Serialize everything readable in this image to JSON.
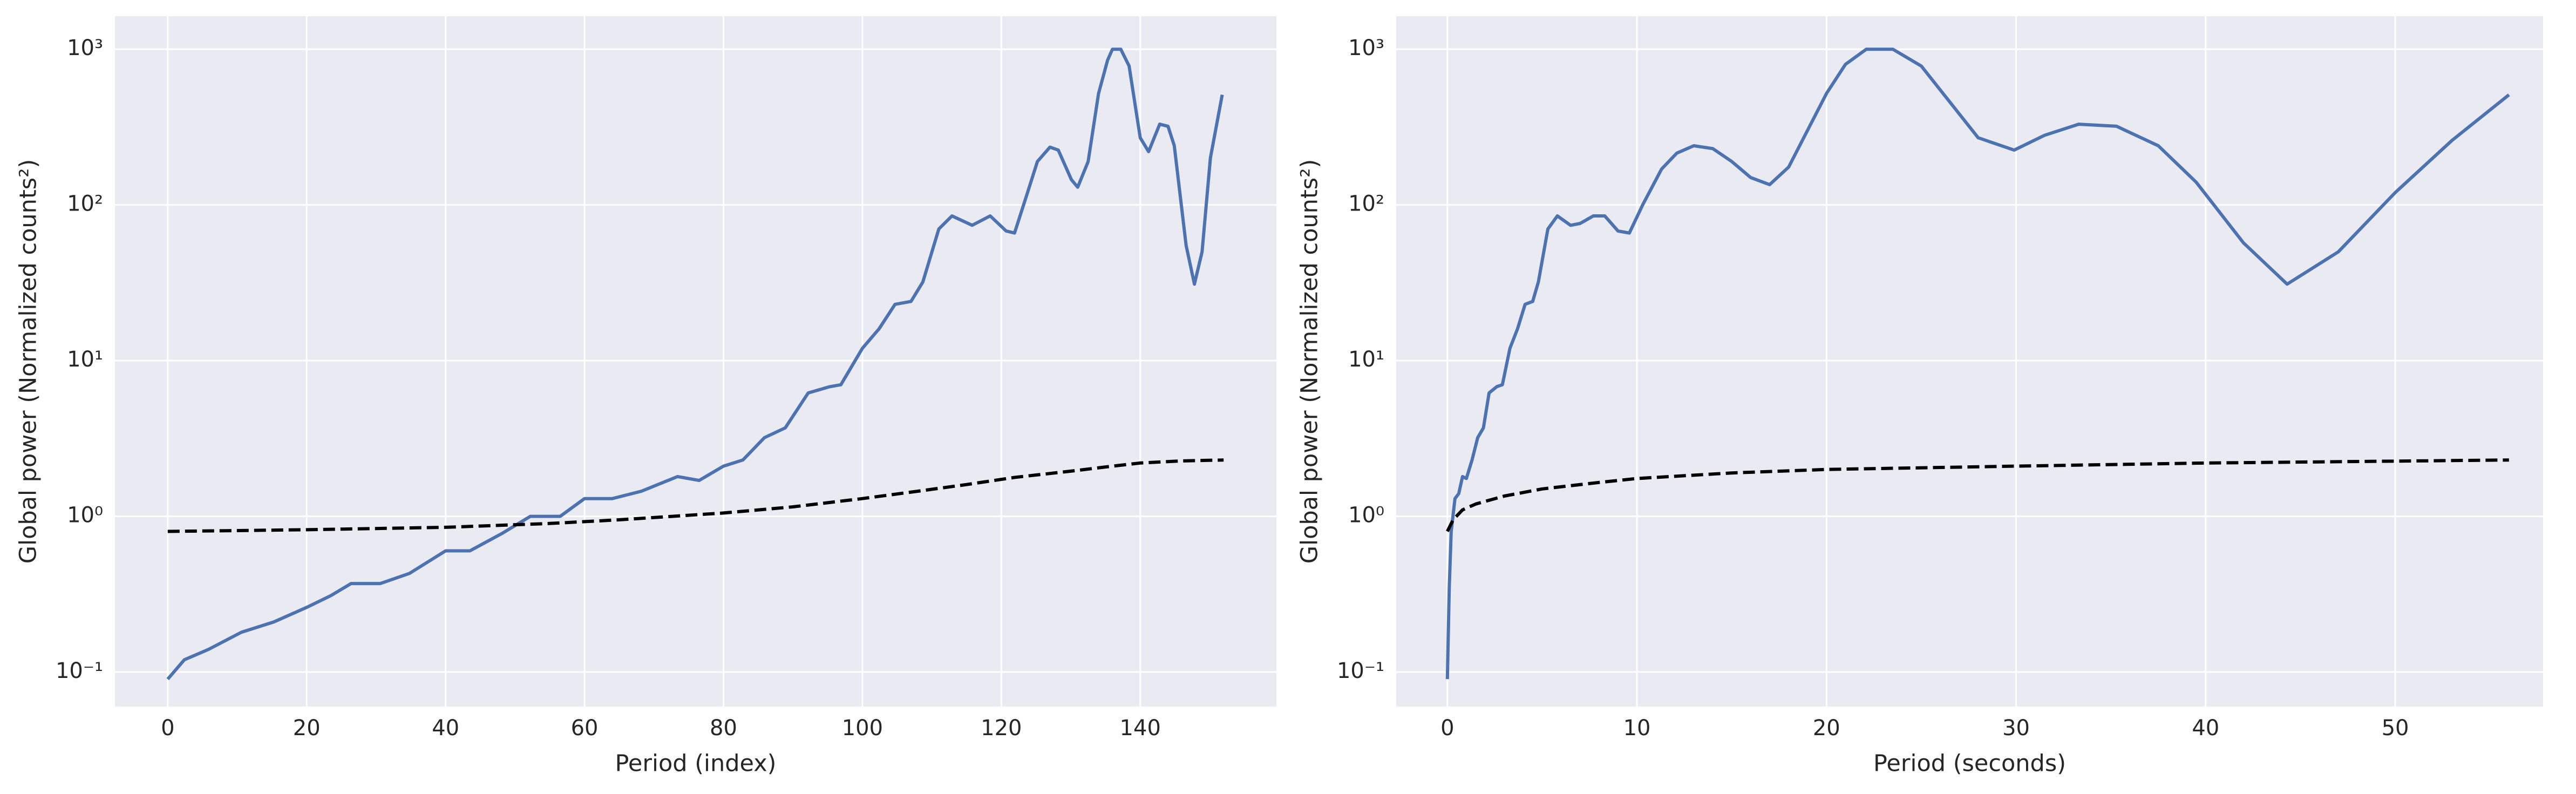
{
  "chart_data": [
    {
      "type": "line",
      "xlabel": "Period (index)",
      "ylabel": "Global power (Normalized counts²)",
      "log_y": true,
      "grid": true,
      "xlim": [
        -7.6,
        159.6
      ],
      "ylim": [
        0.06,
        1630
      ],
      "xticks": [
        0,
        20,
        40,
        60,
        80,
        100,
        120,
        140
      ],
      "yticks": [
        {
          "value": 0.1,
          "label": "10⁻¹"
        },
        {
          "value": 1,
          "label": "10⁰"
        },
        {
          "value": 10,
          "label": "10¹"
        },
        {
          "value": 100,
          "label": "10²"
        },
        {
          "value": 1000,
          "label": "10³"
        }
      ],
      "series": [
        {
          "color": "#4c72b0",
          "dashed": false,
          "x": [
            0,
            2.4,
            5.9,
            10.6,
            15.3,
            20,
            23.5,
            26.4,
            30.6,
            34.8,
            40,
            43.5,
            48.2,
            52.2,
            56.5,
            60,
            64,
            68.2,
            73.4,
            76.5,
            80,
            82.8,
            85.9,
            88.9,
            92.2,
            95.3,
            96.9,
            100,
            102.4,
            104.7,
            107,
            108.7,
            111,
            112.9,
            115.8,
            118.4,
            120.7,
            121.9,
            123.5,
            125.2,
            127,
            128.2,
            130.1,
            131,
            132.5,
            134,
            135.3,
            136,
            137.2,
            138.4,
            140,
            141.2,
            142.8,
            144,
            144.9,
            146.6,
            147.8,
            148.9,
            150.1,
            151.8
          ],
          "values": [
            0.09,
            0.12,
            0.14,
            0.18,
            0.21,
            0.26,
            0.31,
            0.37,
            0.37,
            0.43,
            0.6,
            0.6,
            0.78,
            1.0,
            1.0,
            1.3,
            1.3,
            1.45,
            1.8,
            1.7,
            2.1,
            2.3,
            3.2,
            3.7,
            6.2,
            6.8,
            7.0,
            12,
            16,
            23,
            24,
            32,
            70,
            85,
            74,
            85,
            68,
            66,
            110,
            190,
            235,
            225,
            145,
            130,
            190,
            520,
            850,
            1000,
            1000,
            780,
            270,
            220,
            330,
            320,
            240,
            55,
            31,
            50,
            200,
            510
          ]
        },
        {
          "color": "#000000",
          "dashed": true,
          "x": [
            0,
            20,
            40,
            55,
            65,
            80,
            90,
            100,
            108,
            115,
            122,
            130,
            136,
            140,
            146,
            152
          ],
          "values": [
            0.8,
            0.82,
            0.85,
            0.9,
            0.95,
            1.05,
            1.15,
            1.3,
            1.45,
            1.6,
            1.78,
            1.95,
            2.1,
            2.2,
            2.27,
            2.3
          ]
        }
      ]
    },
    {
      "type": "line",
      "xlabel": "Period (seconds)",
      "ylabel": "Global power (Normalized counts²)",
      "log_y": true,
      "grid": true,
      "xlim": [
        -2.7,
        57.8
      ],
      "ylim": [
        0.06,
        1630
      ],
      "xticks": [
        0,
        10,
        20,
        30,
        40,
        50
      ],
      "yticks": [
        {
          "value": 0.1,
          "label": "10⁻¹"
        },
        {
          "value": 1,
          "label": "10⁰"
        },
        {
          "value": 10,
          "label": "10¹"
        },
        {
          "value": 100,
          "label": "10²"
        },
        {
          "value": 1000,
          "label": "10³"
        }
      ],
      "series": [
        {
          "color": "#4c72b0",
          "dashed": false,
          "x": [
            0,
            0.1,
            0.2,
            0.4,
            0.6,
            0.8,
            1.0,
            1.3,
            1.6,
            1.9,
            2.2,
            2.6,
            2.9,
            3.3,
            3.7,
            4.1,
            4.5,
            4.8,
            5.3,
            5.8,
            6.5,
            7.0,
            7.7,
            8.3,
            9.0,
            9.6,
            10.3,
            11.3,
            12.1,
            13.0,
            14.0,
            15.0,
            16.0,
            17.0,
            18.0,
            20.0,
            21.0,
            22.1,
            23.5,
            25.0,
            28.0,
            29.9,
            31.5,
            33.3,
            35.3,
            37.5,
            39.5,
            42.0,
            44.3,
            47.0,
            50.0,
            53.0,
            56.0
          ],
          "values": [
            0.09,
            0.35,
            0.8,
            1.3,
            1.4,
            1.8,
            1.75,
            2.3,
            3.2,
            3.7,
            6.2,
            6.8,
            7.0,
            12,
            16,
            23,
            24,
            32,
            70,
            85,
            74,
            76,
            85,
            85,
            68,
            66,
            100,
            170,
            215,
            240,
            230,
            190,
            150,
            135,
            175,
            520,
            800,
            1000,
            1000,
            780,
            270,
            225,
            280,
            330,
            320,
            240,
            140,
            57,
            31,
            50,
            120,
            260,
            510
          ]
        },
        {
          "color": "#000000",
          "dashed": true,
          "x": [
            0,
            0.3,
            0.8,
            1.5,
            3,
            5,
            8,
            10,
            15,
            20,
            30,
            40,
            56
          ],
          "values": [
            0.8,
            0.95,
            1.1,
            1.2,
            1.35,
            1.5,
            1.65,
            1.75,
            1.9,
            2.0,
            2.1,
            2.2,
            2.3
          ]
        }
      ]
    }
  ]
}
